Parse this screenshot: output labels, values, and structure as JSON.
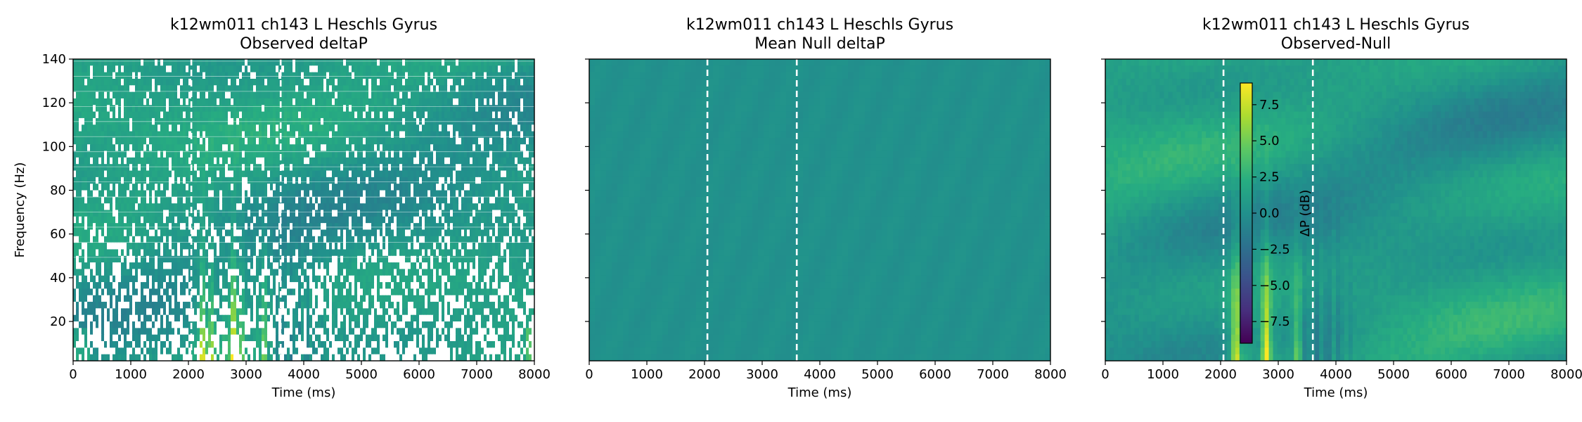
{
  "figure": {
    "colormap": "viridis",
    "colormap_stops": [
      "#440154",
      "#472f7d",
      "#3b528b",
      "#2c728e",
      "#21918c",
      "#27ad81",
      "#5ec962",
      "#addc30",
      "#fde725"
    ]
  },
  "chart_data": [
    {
      "type": "heatmap",
      "title": [
        "k12wm011 ch143 L Heschls Gyrus",
        "Observed deltaP"
      ],
      "xlabel": "Time (ms)",
      "ylabel": "Frequency (Hz)",
      "xlim": [
        0,
        8000
      ],
      "ylim": [
        2,
        140
      ],
      "xticks": [
        0,
        1000,
        2000,
        3000,
        4000,
        5000,
        6000,
        7000,
        8000
      ],
      "yticks": [
        20,
        40,
        60,
        80,
        100,
        120,
        140
      ],
      "vlines_ms": [
        2050,
        3600
      ],
      "masked_cells": "white where non-significant"
    },
    {
      "type": "heatmap",
      "title": [
        "k12wm011 ch143 L Heschls Gyrus",
        "Mean Null deltaP"
      ],
      "xlabel": "Time (ms)",
      "ylabel": "",
      "xlim": [
        0,
        8000
      ],
      "ylim": [
        2,
        140
      ],
      "xticks": [
        0,
        1000,
        2000,
        3000,
        4000,
        5000,
        6000,
        7000,
        8000
      ],
      "yticks": [
        20,
        40,
        60,
        80,
        100,
        120,
        140
      ],
      "vlines_ms": [
        2050,
        3600
      ],
      "approx_value_db": 0.0
    },
    {
      "type": "heatmap",
      "title": [
        "k12wm011 ch143 L Heschls Gyrus",
        "Observed-Null"
      ],
      "xlabel": "Time (ms)",
      "ylabel": "",
      "xlim": [
        0,
        8000
      ],
      "ylim": [
        2,
        140
      ],
      "xticks": [
        0,
        1000,
        2000,
        3000,
        4000,
        5000,
        6000,
        7000,
        8000
      ],
      "yticks": [
        20,
        40,
        60,
        80,
        100,
        120,
        140
      ],
      "vlines_ms": [
        2050,
        3600
      ],
      "colorbar": {
        "label": "ΔP (dB)",
        "range": [
          -9,
          9
        ],
        "ticks": [
          7.5,
          5.0,
          2.5,
          0.0,
          -2.5,
          -5.0,
          -7.5
        ],
        "tick_labels": [
          "7.5",
          "5.0",
          "2.5",
          "0.0",
          "−2.5",
          "−5.0",
          "−7.5"
        ]
      }
    }
  ]
}
